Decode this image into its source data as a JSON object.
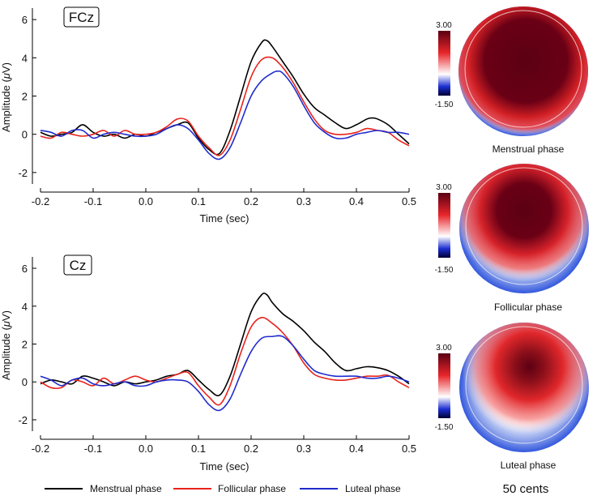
{
  "chart_data": [
    {
      "type": "line",
      "panel_label": "FCz",
      "xlabel": "Time (sec)",
      "ylabel_prefix": "Amplitude (",
      "ylabel_mu": "μ",
      "ylabel_suffix": "V)",
      "xlim": [
        -0.2,
        0.5
      ],
      "ylim": [
        -2.6,
        6.6
      ],
      "xticks": [
        -0.2,
        -0.1,
        0.0,
        0.1,
        0.2,
        0.3,
        0.4,
        0.5
      ],
      "xtick_labels": [
        "-0.2",
        "-0.1",
        "0.0",
        "0.1",
        "0.2",
        "0.3",
        "0.4",
        "0.5"
      ],
      "yticks": [
        -2,
        0,
        2,
        4,
        6
      ],
      "ytick_labels": [
        "-2",
        "0",
        "2",
        "4",
        "6"
      ],
      "series": [
        {
          "name": "Menstrual phase",
          "color": "#000000",
          "x": [
            -0.2,
            -0.18,
            -0.16,
            -0.14,
            -0.12,
            -0.1,
            -0.08,
            -0.06,
            -0.04,
            -0.02,
            0.0,
            0.02,
            0.04,
            0.06,
            0.08,
            0.1,
            0.12,
            0.14,
            0.16,
            0.18,
            0.2,
            0.22,
            0.23,
            0.24,
            0.26,
            0.28,
            0.3,
            0.32,
            0.34,
            0.36,
            0.38,
            0.4,
            0.42,
            0.43,
            0.44,
            0.46,
            0.48,
            0.5
          ],
          "y": [
            0.1,
            -0.1,
            0.0,
            0.1,
            0.5,
            0.1,
            -0.1,
            0.0,
            -0.2,
            0.0,
            -0.1,
            0.1,
            0.3,
            0.5,
            0.6,
            -0.2,
            -0.8,
            -1.0,
            0.2,
            2.0,
            3.8,
            4.8,
            4.9,
            4.6,
            3.8,
            3.0,
            2.1,
            1.4,
            1.0,
            0.6,
            0.3,
            0.5,
            0.8,
            0.85,
            0.8,
            0.5,
            0.0,
            -0.5
          ]
        },
        {
          "name": "Follicular phase",
          "color": "#e8231c",
          "x": [
            -0.2,
            -0.18,
            -0.16,
            -0.14,
            -0.12,
            -0.1,
            -0.08,
            -0.06,
            -0.04,
            -0.02,
            0.0,
            0.02,
            0.04,
            0.06,
            0.08,
            0.1,
            0.12,
            0.14,
            0.16,
            0.18,
            0.2,
            0.22,
            0.24,
            0.26,
            0.28,
            0.3,
            0.32,
            0.34,
            0.36,
            0.38,
            0.4,
            0.42,
            0.44,
            0.46,
            0.48,
            0.5
          ],
          "y": [
            -0.1,
            -0.2,
            0.1,
            0.0,
            -0.1,
            0.0,
            0.2,
            -0.1,
            0.2,
            0.0,
            0.0,
            0.1,
            0.4,
            0.8,
            0.7,
            -0.1,
            -0.7,
            -1.1,
            -0.3,
            1.3,
            3.0,
            3.9,
            4.0,
            3.5,
            2.7,
            1.7,
            0.8,
            0.2,
            0.0,
            0.0,
            0.1,
            0.3,
            0.2,
            0.1,
            -0.3,
            -0.6
          ]
        },
        {
          "name": "Luteal phase",
          "color": "#1f2ccc",
          "x": [
            -0.2,
            -0.18,
            -0.16,
            -0.14,
            -0.12,
            -0.1,
            -0.08,
            -0.06,
            -0.04,
            -0.02,
            0.0,
            0.02,
            0.04,
            0.06,
            0.08,
            0.1,
            0.12,
            0.14,
            0.16,
            0.18,
            0.2,
            0.22,
            0.24,
            0.25,
            0.26,
            0.28,
            0.3,
            0.32,
            0.34,
            0.36,
            0.38,
            0.4,
            0.42,
            0.44,
            0.46,
            0.48,
            0.5
          ],
          "y": [
            0.2,
            0.1,
            -0.1,
            0.2,
            0.2,
            -0.2,
            0.0,
            0.1,
            0.0,
            -0.1,
            -0.1,
            0.0,
            0.3,
            0.5,
            0.3,
            -0.3,
            -1.0,
            -1.3,
            -0.7,
            0.6,
            2.0,
            2.8,
            3.2,
            3.3,
            3.2,
            2.5,
            1.5,
            0.6,
            0.1,
            -0.2,
            -0.2,
            0.0,
            0.1,
            0.2,
            0.1,
            0.1,
            0.0
          ]
        }
      ]
    },
    {
      "type": "line",
      "panel_label": "Cz",
      "xlabel": "Time (sec)",
      "ylabel_prefix": "Amplitude (",
      "ylabel_mu": "μ",
      "ylabel_suffix": "V)",
      "xlim": [
        -0.2,
        0.5
      ],
      "ylim": [
        -2.6,
        6.6
      ],
      "xticks": [
        -0.2,
        -0.1,
        0.0,
        0.1,
        0.2,
        0.3,
        0.4,
        0.5
      ],
      "xtick_labels": [
        "-0.2",
        "-0.1",
        "0.0",
        "0.1",
        "0.2",
        "0.3",
        "0.4",
        "0.5"
      ],
      "yticks": [
        -2,
        0,
        2,
        4,
        6
      ],
      "ytick_labels": [
        "-2",
        "0",
        "2",
        "4",
        "6"
      ],
      "series": [
        {
          "name": "Menstrual phase",
          "color": "#000000",
          "x": [
            -0.2,
            -0.18,
            -0.16,
            -0.14,
            -0.12,
            -0.1,
            -0.08,
            -0.06,
            -0.04,
            -0.02,
            0.0,
            0.02,
            0.04,
            0.06,
            0.08,
            0.1,
            0.12,
            0.14,
            0.16,
            0.18,
            0.2,
            0.22,
            0.23,
            0.24,
            0.26,
            0.28,
            0.3,
            0.32,
            0.34,
            0.36,
            0.38,
            0.4,
            0.42,
            0.44,
            0.46,
            0.48,
            0.5
          ],
          "y": [
            -0.1,
            0.1,
            0.0,
            -0.1,
            0.3,
            0.2,
            0.0,
            -0.2,
            0.0,
            -0.1,
            0.0,
            0.1,
            0.3,
            0.4,
            0.6,
            0.1,
            -0.4,
            -0.7,
            0.3,
            2.0,
            3.7,
            4.6,
            4.6,
            4.2,
            3.6,
            3.2,
            2.7,
            2.1,
            1.6,
            1.0,
            0.6,
            0.7,
            0.8,
            0.75,
            0.6,
            0.3,
            -0.1
          ]
        },
        {
          "name": "Follicular phase",
          "color": "#e8231c",
          "x": [
            -0.2,
            -0.18,
            -0.16,
            -0.14,
            -0.12,
            -0.1,
            -0.08,
            -0.06,
            -0.04,
            -0.02,
            0.0,
            0.02,
            0.04,
            0.06,
            0.08,
            0.1,
            0.12,
            0.14,
            0.16,
            0.18,
            0.2,
            0.22,
            0.24,
            0.26,
            0.28,
            0.3,
            0.32,
            0.34,
            0.36,
            0.38,
            0.4,
            0.42,
            0.44,
            0.46,
            0.48,
            0.5
          ],
          "y": [
            0.0,
            -0.3,
            -0.3,
            0.1,
            0.0,
            -0.2,
            0.2,
            -0.1,
            0.1,
            0.3,
            0.1,
            0.0,
            0.2,
            0.4,
            0.5,
            -0.2,
            -0.8,
            -1.2,
            -0.2,
            1.5,
            2.9,
            3.4,
            3.1,
            2.6,
            1.9,
            1.0,
            0.4,
            0.2,
            0.1,
            0.1,
            0.2,
            0.3,
            0.3,
            0.35,
            0.0,
            -0.3
          ]
        },
        {
          "name": "Luteal phase",
          "color": "#1f2ccc",
          "x": [
            -0.2,
            -0.18,
            -0.16,
            -0.14,
            -0.12,
            -0.1,
            -0.08,
            -0.06,
            -0.04,
            -0.02,
            0.0,
            0.02,
            0.04,
            0.06,
            0.08,
            0.1,
            0.12,
            0.14,
            0.16,
            0.18,
            0.2,
            0.22,
            0.24,
            0.26,
            0.28,
            0.3,
            0.32,
            0.34,
            0.36,
            0.38,
            0.4,
            0.42,
            0.44,
            0.46,
            0.48,
            0.5
          ],
          "y": [
            0.3,
            0.1,
            -0.2,
            0.1,
            0.2,
            -0.1,
            -0.2,
            -0.1,
            0.0,
            -0.2,
            -0.2,
            0.0,
            0.1,
            0.1,
            0.0,
            -0.5,
            -1.2,
            -1.5,
            -0.9,
            0.4,
            1.6,
            2.3,
            2.4,
            2.4,
            1.9,
            1.2,
            0.6,
            0.4,
            0.3,
            0.3,
            0.3,
            0.2,
            0.2,
            0.3,
            0.2,
            0.0
          ]
        }
      ]
    }
  ],
  "topomaps": {
    "scale_max_label": "3.00",
    "scale_min_label": "-1.50",
    "maps": [
      {
        "label": "Menstrual phase"
      },
      {
        "label": "Follicular phase"
      },
      {
        "label": "Luteal phase"
      }
    ]
  },
  "legend": {
    "items": [
      {
        "label": "Menstrual phase",
        "color": "#000000"
      },
      {
        "label": "Follicular phase",
        "color": "#e8231c"
      },
      {
        "label": "Luteal phase",
        "color": "#1f2ccc"
      }
    ],
    "note": "50 cents"
  }
}
